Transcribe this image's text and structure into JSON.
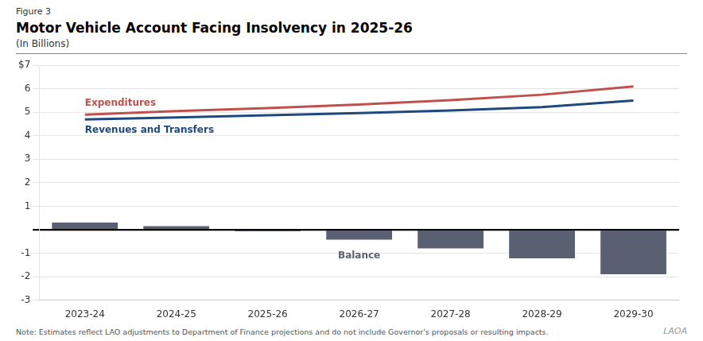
{
  "chart_data": {
    "type": "bar",
    "figure_label": "Figure 3",
    "title": "Motor Vehicle Account Facing Insolvency in 2025-26",
    "subtitle": "(In Billions)",
    "note": "Note: Estimates reflect LAO adjustments to Department of Finance projections and do not include Governor's proposals or resulting impacts.",
    "logo": "LAOA",
    "categories": [
      "2023-24",
      "2024-25",
      "2025-26",
      "2026-27",
      "2027-28",
      "2028-29",
      "2029-30"
    ],
    "series": [
      {
        "name": "Balance",
        "type": "bar",
        "color": "#5a5f72",
        "values": [
          0.3,
          0.15,
          -0.07,
          -0.42,
          -0.8,
          -1.22,
          -1.9
        ]
      },
      {
        "name": "Expenditures",
        "type": "line",
        "color": "#c0504d",
        "values": [
          4.9,
          5.05,
          5.18,
          5.33,
          5.52,
          5.75,
          6.1
        ]
      },
      {
        "name": "Revenues and Transfers",
        "type": "line",
        "color": "#1f497d",
        "values": [
          4.7,
          4.78,
          4.87,
          4.97,
          5.08,
          5.22,
          5.5
        ]
      }
    ],
    "ylim": [
      -3,
      7
    ],
    "yticks": [
      -3,
      -2,
      -1,
      {
        "value": 0,
        "label": ""
      },
      1,
      2,
      3,
      4,
      5,
      6,
      {
        "value": 7,
        "label": "$7"
      }
    ],
    "grid": true
  }
}
